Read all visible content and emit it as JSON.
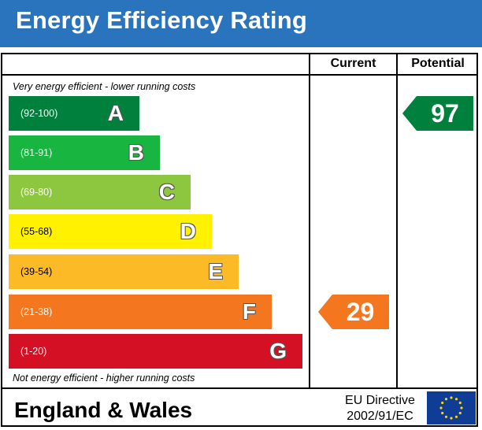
{
  "title": "Energy Efficiency Rating",
  "columns": {
    "current": "Current",
    "potential": "Potential"
  },
  "top_note": "Very energy efficient - lower running costs",
  "bottom_note": "Not energy efficient - higher running costs",
  "footer": {
    "region": "England & Wales",
    "directive_line1": "EU Directive",
    "directive_line2": "2002/91/EC"
  },
  "chart_data": {
    "type": "bar",
    "categories": [
      "A",
      "B",
      "C",
      "D",
      "E",
      "F",
      "G"
    ],
    "ranges": [
      "(92-100)",
      "(81-91)",
      "(69-80)",
      "(55-68)",
      "(39-54)",
      "(21-38)",
      "(1-20)"
    ],
    "colors": [
      "#00803d",
      "#18b640",
      "#8dc63f",
      "#fff100",
      "#fcba26",
      "#f4771f",
      "#d31024"
    ],
    "current": {
      "value": 29,
      "band": "F",
      "color": "#f4771f"
    },
    "potential": {
      "value": 97,
      "band": "A",
      "color": "#00803d"
    }
  }
}
